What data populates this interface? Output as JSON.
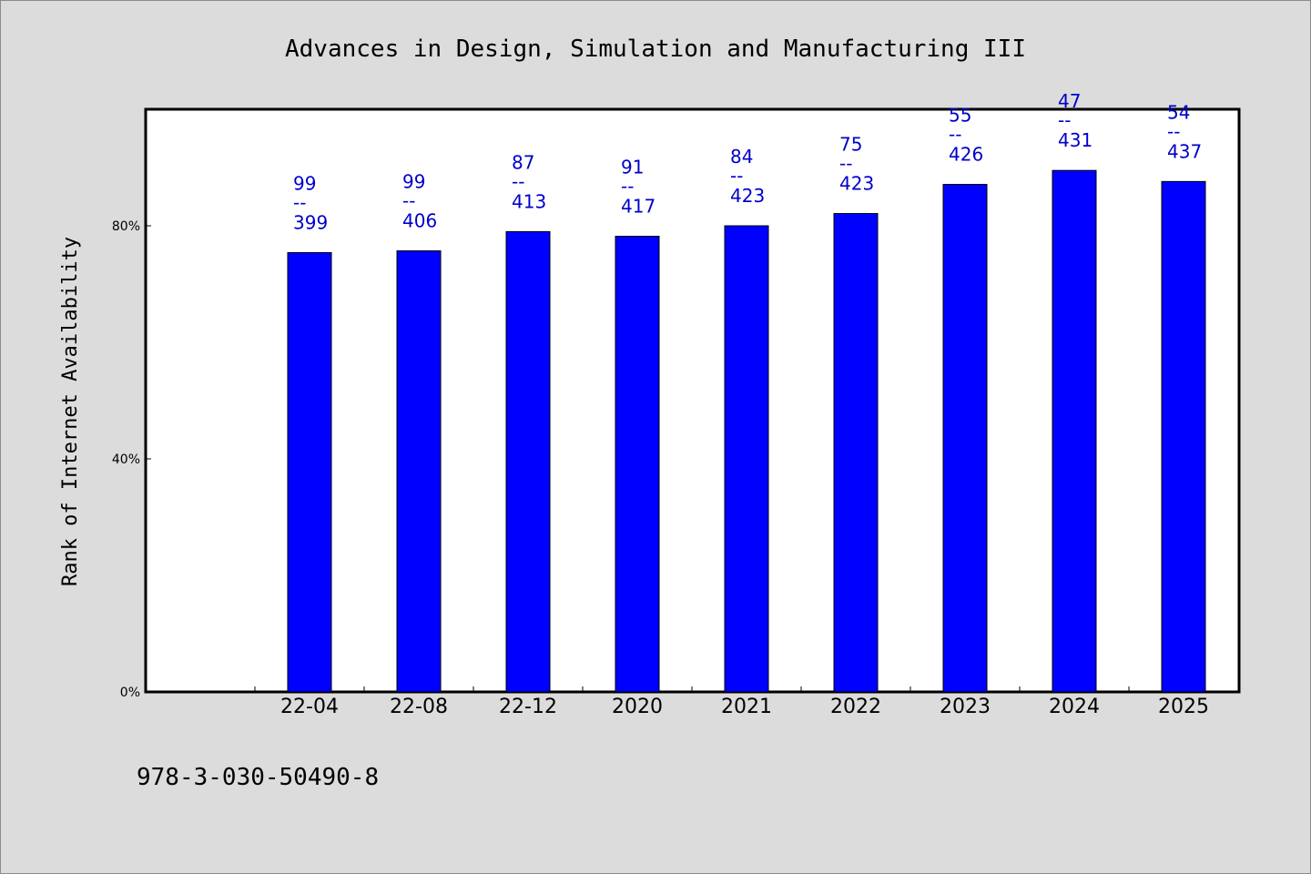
{
  "chart_data": {
    "type": "bar",
    "title": "Advances in Design, Simulation and Manufacturing III",
    "ylabel": "Rank of Internet Availability",
    "xlabel": "",
    "categories": [
      "22-04",
      "22-08",
      "22-12",
      "2020",
      "2021",
      "2022",
      "2023",
      "2024",
      "2025"
    ],
    "values": [
      75.4,
      75.7,
      79.0,
      78.2,
      80.0,
      82.1,
      87.1,
      89.5,
      87.6
    ],
    "labels_top": [
      "99",
      "99",
      "87",
      "91",
      "84",
      "75",
      "55",
      "47",
      "54"
    ],
    "labels_mid": [
      "--",
      "--",
      "--",
      "--",
      "--",
      "--",
      "--",
      "--",
      "--"
    ],
    "labels_bottom": [
      "399",
      "406",
      "413",
      "417",
      "423",
      "423",
      "426",
      "431",
      "437"
    ],
    "ylim": [
      0,
      100
    ],
    "yticks": [
      0,
      40,
      80
    ],
    "ytick_labels": [
      "0%",
      "40%",
      "80%"
    ],
    "grid": false,
    "bar_color": "#0000ff",
    "label_color": "#0000cc",
    "background": "#dcdcdc",
    "plot_background": "#ffffff"
  },
  "footer": {
    "isbn": "978-3-030-50490-8"
  }
}
